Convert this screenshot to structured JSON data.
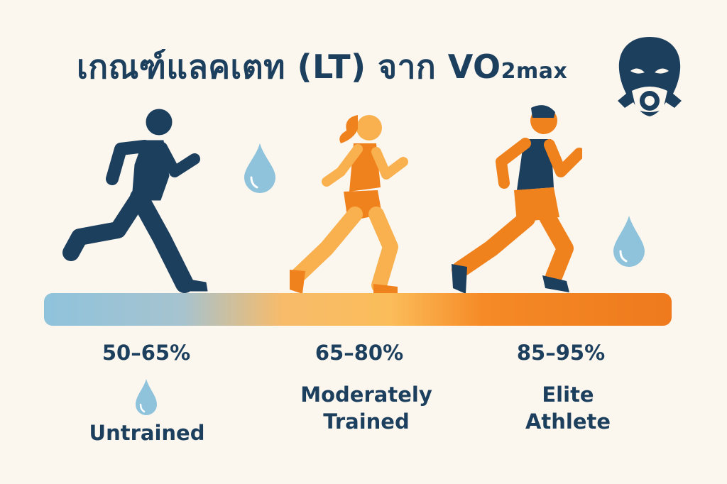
{
  "title": {
    "main": "เกณฑ์แลคเตท (LT) จาก VO",
    "subscript": "2max"
  },
  "icons": [
    "gas-mask-icon",
    "water-drop-icon",
    "runner-icon"
  ],
  "colors": {
    "navy": "#1d3f5e",
    "orange": "#f0821e",
    "light_orange": "#f9b14f",
    "drop_blue": "#8fc3dc",
    "background": "#fbf7ef"
  },
  "levels": [
    {
      "range": "50–65%",
      "label_lines": [
        "Untrained"
      ]
    },
    {
      "range": "65–80%",
      "label_lines": [
        "Moderately",
        "Trained"
      ]
    },
    {
      "range": "85–95%",
      "label_lines": [
        "Elite",
        "Athlete"
      ]
    }
  ]
}
